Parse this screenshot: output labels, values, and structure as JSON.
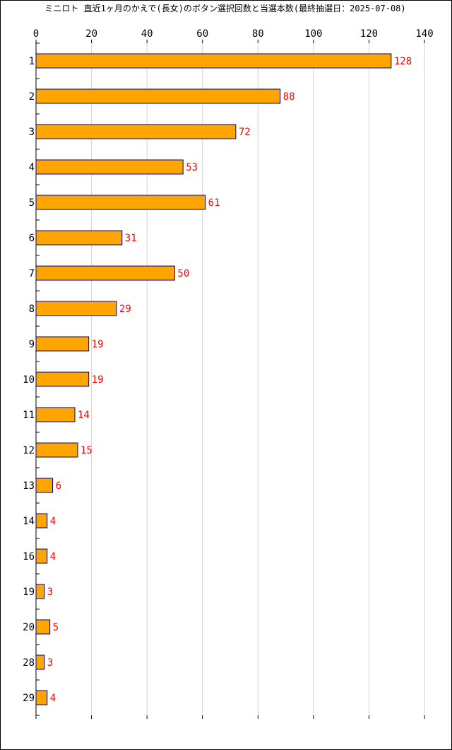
{
  "chart_data": {
    "type": "bar",
    "orientation": "horizontal",
    "title": "ミニロト 直近1ヶ月のかえで(長女)のボタン選択回数と当選本数(最終抽選日：2025-07-08)",
    "categories": [
      "1",
      "2",
      "3",
      "4",
      "5",
      "6",
      "7",
      "8",
      "9",
      "10",
      "11",
      "12",
      "13",
      "14",
      "16",
      "19",
      "20",
      "28",
      "29"
    ],
    "values": [
      128,
      88,
      72,
      53,
      61,
      31,
      50,
      29,
      19,
      19,
      14,
      15,
      6,
      4,
      4,
      3,
      5,
      3,
      4
    ],
    "xlim": [
      0,
      140
    ],
    "x_ticks": [
      0,
      20,
      40,
      60,
      80,
      100,
      120,
      140
    ],
    "xaxis_position": "top",
    "grid": true,
    "colors": {
      "bar_fill": "#FFA500",
      "bar_stroke": "#00008B",
      "value_label": "#FF0000",
      "grid": "#D3D3D3",
      "axis": "#000000"
    }
  }
}
